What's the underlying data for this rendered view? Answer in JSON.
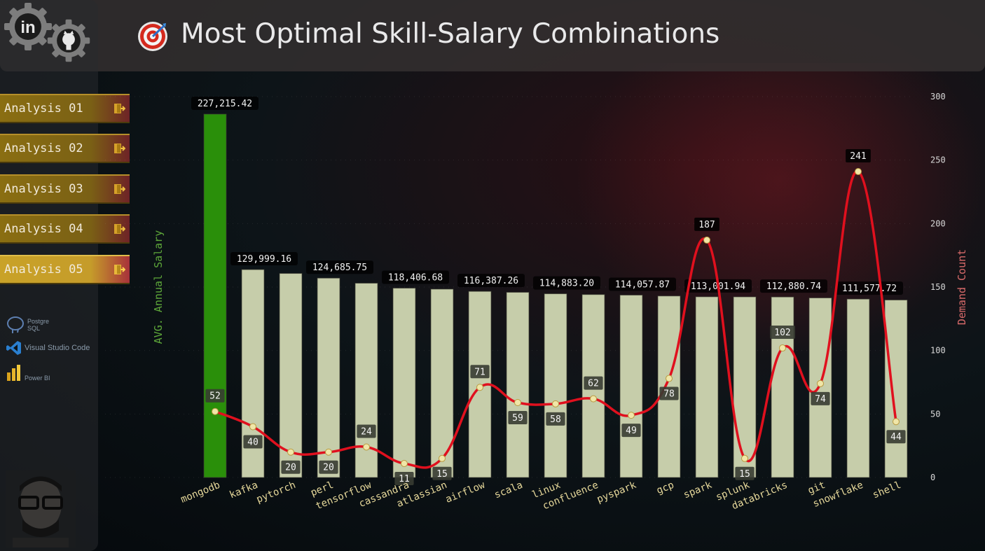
{
  "header": {
    "title": "Most Optimal Skill-Salary Combinations"
  },
  "sidebar": {
    "nav": [
      {
        "label": "Analysis 01",
        "active": false
      },
      {
        "label": "Analysis 02",
        "active": false
      },
      {
        "label": "Analysis 03",
        "active": false
      },
      {
        "label": "Analysis 04",
        "active": false
      },
      {
        "label": "Analysis 05",
        "active": true
      }
    ],
    "social": [
      {
        "icon": "linkedin-icon"
      },
      {
        "icon": "github-icon"
      }
    ],
    "tools": [
      {
        "label": "Postgre SQL",
        "icon": "postgresql-icon"
      },
      {
        "label": "Visual Studio Code",
        "icon": "vscode-icon"
      },
      {
        "label": "Power BI",
        "icon": "powerbi-icon"
      }
    ]
  },
  "colors": {
    "highlight_bar": "#2a8f0a",
    "bar": "#c6cdaa",
    "line": "#e0101e",
    "marker": "#f0e6a8",
    "left_axis_label": "#5ea83a",
    "right_axis_label": "#d86a6a",
    "category_label": "#e6d89a"
  },
  "chart_data": {
    "type": "bar",
    "y_left_label": "AVG. Annual Salary",
    "y_right_label": "Demand Count",
    "y_right_ticks": [
      0,
      50,
      100,
      150,
      200,
      250,
      300
    ],
    "y_right_range": [
      0,
      300
    ],
    "y_left_range": [
      0,
      227215.42
    ],
    "categories": [
      "mongodb",
      "kafka",
      "pytorch",
      "perl",
      "tensorflow",
      "cassandra",
      "atlassian",
      "airflow",
      "scala",
      "linux",
      "confluence",
      "pyspark",
      "gcp",
      "spark",
      "splunk",
      "databricks",
      "git",
      "snowflake",
      "shell"
    ],
    "series": [
      {
        "name": "AVG. Annual Salary",
        "kind": "bar",
        "axis": "left",
        "values": [
          227215.42,
          129999.16,
          127600,
          124685.75,
          121500,
          118406.68,
          117800,
          116387.26,
          115800,
          114883.2,
          114400,
          114057.87,
          113500,
          113001.94,
          112950,
          112880.74,
          112300,
          111577.72,
          111000
        ],
        "labels": [
          "227,215.42",
          "129,999.16",
          "",
          "124,685.75",
          "",
          "118,406.68",
          "",
          "116,387.26",
          "",
          "114,883.20",
          "",
          "114,057.87",
          "",
          "113,001.94",
          "",
          "112,880.74",
          "",
          "111,577.72",
          ""
        ]
      },
      {
        "name": "Demand Count",
        "kind": "line",
        "axis": "right",
        "values": [
          52,
          40,
          20,
          20,
          24,
          11,
          15,
          71,
          59,
          58,
          62,
          49,
          78,
          187,
          15,
          102,
          74,
          241,
          44
        ]
      }
    ]
  }
}
